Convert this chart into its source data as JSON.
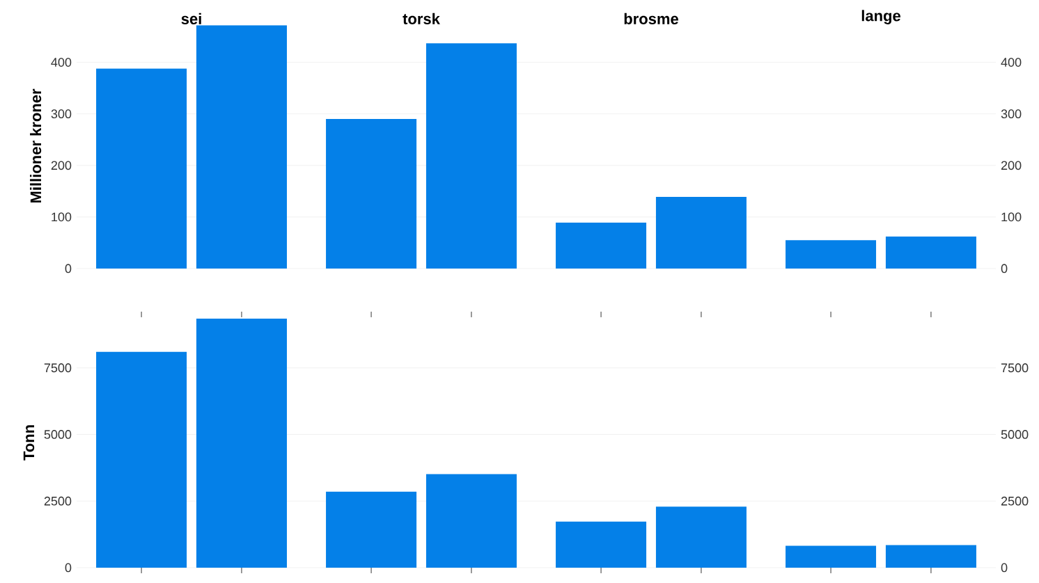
{
  "chart_data": [
    {
      "type": "bar",
      "ylabel": "Millioner kroner",
      "categories": [
        "sei",
        "torsk",
        "brosme",
        "lange"
      ],
      "series": [
        {
          "color": "#0480e8",
          "values": [
            388,
            290,
            89,
            55
          ]
        },
        {
          "color": "#0480e8",
          "values": [
            472,
            437,
            139,
            62
          ]
        }
      ],
      "ylim": [
        0,
        475
      ],
      "yticks": [
        0,
        100,
        200,
        300,
        400
      ],
      "y2lim": [
        0,
        475
      ],
      "y2ticks": [
        0,
        100,
        200,
        300,
        400
      ],
      "grid": "y"
    },
    {
      "type": "bar",
      "ylabel": "Tonn",
      "categories": [
        null,
        null,
        null,
        null
      ],
      "series": [
        {
          "color": "#0480e8",
          "values": [
            8100,
            2850,
            1730,
            820
          ]
        },
        {
          "color": "#0480e8",
          "values": [
            9350,
            3510,
            2290,
            850
          ]
        }
      ],
      "ylim": [
        0,
        9400
      ],
      "yticks": [
        0,
        2500,
        5000,
        7500
      ],
      "y2lim": [
        0,
        9400
      ],
      "y2ticks": [
        0,
        2500,
        5000,
        7500
      ],
      "grid": "y"
    }
  ]
}
